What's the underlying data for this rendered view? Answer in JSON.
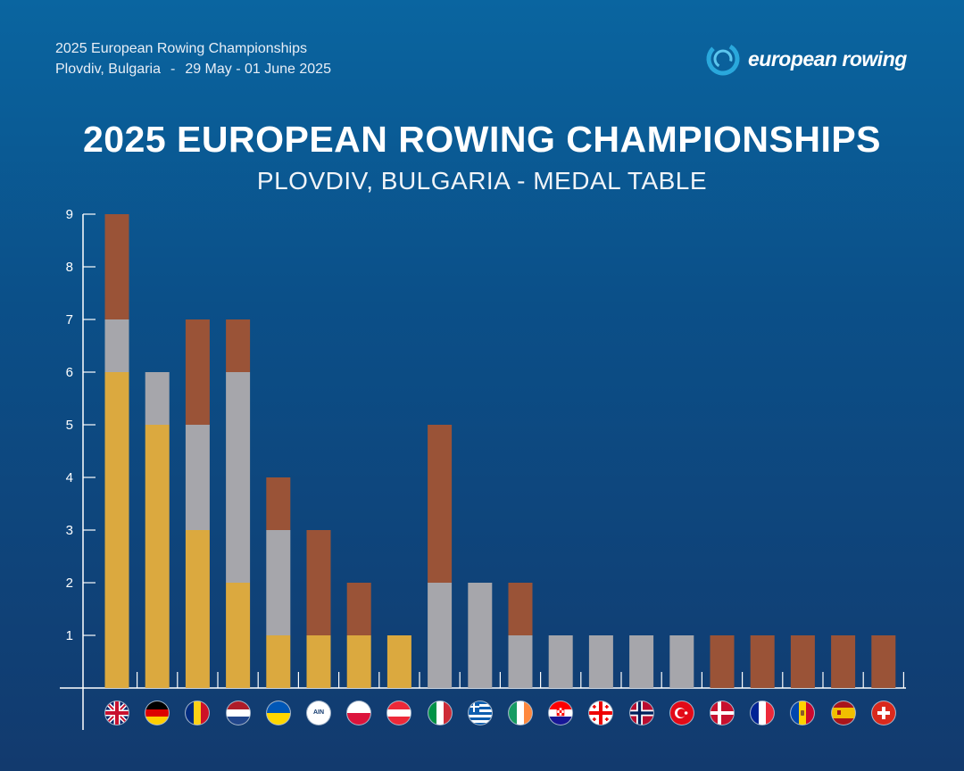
{
  "header": {
    "event_line": "2025 European Rowing Championships",
    "location": "Plovdiv, Bulgaria",
    "separator": "-",
    "dates": "29 May - 01 June 2025",
    "logo_text": "european rowing"
  },
  "chart_data": {
    "type": "bar",
    "stacked": true,
    "title": "2025 EUROPEAN ROWING CHAMPIONSHIPS",
    "subtitle": "PLOVDIV, BULGARIA - MEDAL TABLE",
    "xlabel": "",
    "ylabel": "",
    "ylim": [
      0,
      9
    ],
    "yticks": [
      1,
      2,
      3,
      4,
      5,
      6,
      7,
      8,
      9
    ],
    "grid": false,
    "legend": "none",
    "categories": [
      "GBR",
      "GER",
      "ROU",
      "NED",
      "UKR",
      "AIN",
      "POL",
      "AUT",
      "ITA",
      "GRE",
      "IRL",
      "CRO",
      "GEO",
      "NOR",
      "TUR",
      "DEN",
      "FRA",
      "MDA",
      "ESP",
      "SUI"
    ],
    "series": [
      {
        "key": "gold",
        "color": "#dba93f",
        "values": [
          6,
          5,
          3,
          2,
          1,
          1,
          1,
          1,
          0,
          0,
          0,
          0,
          0,
          0,
          0,
          0,
          0,
          0,
          0,
          0
        ]
      },
      {
        "key": "silver",
        "color": "#a6a6ab",
        "values": [
          1,
          1,
          2,
          4,
          2,
          0,
          0,
          0,
          2,
          2,
          1,
          1,
          1,
          1,
          1,
          0,
          0,
          0,
          0,
          0
        ]
      },
      {
        "key": "bronze",
        "color": "#9a5337",
        "values": [
          2,
          0,
          2,
          1,
          1,
          2,
          1,
          0,
          3,
          0,
          1,
          0,
          0,
          0,
          0,
          1,
          1,
          1,
          1,
          1
        ]
      }
    ],
    "flag_icons": [
      "uk-flag-icon",
      "germany-flag-icon",
      "romania-flag-icon",
      "netherlands-flag-icon",
      "ukraine-flag-icon",
      "ain-badge-icon",
      "poland-flag-icon",
      "austria-flag-icon",
      "italy-flag-icon",
      "greece-flag-icon",
      "ireland-flag-icon",
      "croatia-flag-icon",
      "georgia-flag-icon",
      "norway-flag-icon",
      "turkey-flag-icon",
      "denmark-flag-icon",
      "france-flag-icon",
      "moldova-flag-icon",
      "spain-flag-icon",
      "switzerland-flag-icon"
    ],
    "ain_badge_text": "AIN"
  }
}
